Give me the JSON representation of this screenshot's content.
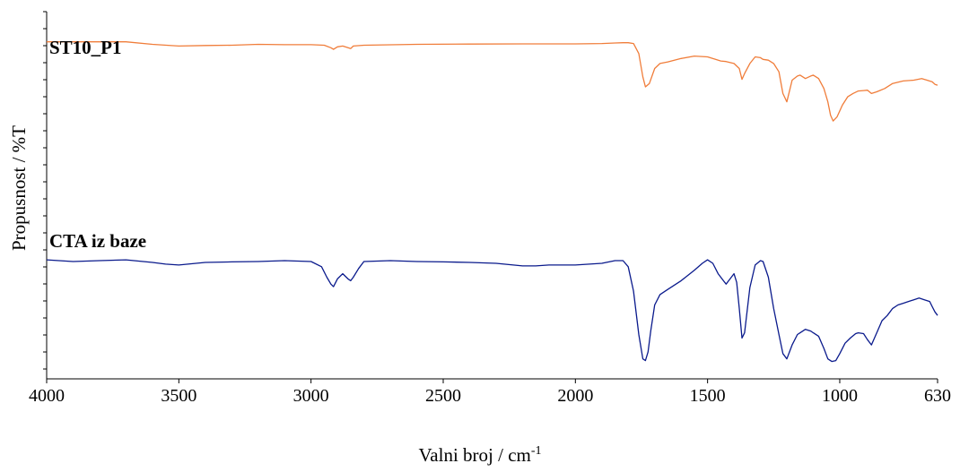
{
  "chart_data": {
    "type": "line",
    "xlabel": "Valni broj / cm",
    "xlabel_sup": "-1",
    "ylabel": "Propusnost / %T",
    "xlim": [
      4000,
      630
    ],
    "x_reversed": true,
    "ticks": [
      {
        "value": 4000,
        "label": "4000"
      },
      {
        "value": 3500,
        "label": "3500"
      },
      {
        "value": 3000,
        "label": "3000"
      },
      {
        "value": 2500,
        "label": "2500"
      },
      {
        "value": 2000,
        "label": "2000"
      },
      {
        "value": 1500,
        "label": "1500"
      },
      {
        "value": 1000,
        "label": "1000"
      },
      {
        "value": 630,
        "label": "630"
      }
    ],
    "ylim": [
      0,
      100
    ],
    "y_ticks_unlabeled": true,
    "series": [
      {
        "name": "ST10_P1",
        "color": "#f07d3a",
        "x": [
          4000,
          3700,
          3600,
          3500,
          3400,
          3300,
          3200,
          3100,
          3000,
          2950,
          2925,
          2915,
          2900,
          2880,
          2860,
          2850,
          2840,
          2800,
          2600,
          2400,
          2200,
          2000,
          1900,
          1850,
          1820,
          1800,
          1780,
          1760,
          1745,
          1735,
          1720,
          1700,
          1680,
          1650,
          1600,
          1550,
          1500,
          1470,
          1450,
          1430,
          1400,
          1380,
          1370,
          1360,
          1340,
          1320,
          1300,
          1290,
          1270,
          1250,
          1230,
          1215,
          1200,
          1180,
          1160,
          1150,
          1130,
          1110,
          1100,
          1080,
          1060,
          1045,
          1035,
          1025,
          1010,
          990,
          970,
          950,
          930,
          910,
          895,
          880,
          860,
          830,
          800,
          760,
          720,
          690,
          670,
          650,
          640,
          630
        ],
        "y": [
          91,
          91,
          89.5,
          88.5,
          88.8,
          89,
          89.5,
          89.3,
          89.3,
          89,
          87.5,
          86.5,
          88,
          88.5,
          87.5,
          87,
          88.5,
          89,
          89.5,
          89.7,
          89.8,
          89.8,
          90,
          90.3,
          90.5,
          90.5,
          90,
          84,
          70,
          64,
          66,
          75,
          78,
          79,
          81,
          82.5,
          82,
          80.5,
          79.5,
          79.2,
          78,
          75,
          68.5,
          72,
          78,
          82,
          81.5,
          80.5,
          80,
          78,
          73,
          60,
          55,
          68,
          70.5,
          71,
          69,
          70.5,
          71,
          69,
          63,
          55,
          47,
          43.5,
          46,
          53,
          58,
          60,
          61.5,
          61.8,
          62,
          60,
          61,
          63,
          66,
          67.5,
          68,
          69,
          68,
          67,
          65.5,
          65
        ]
      },
      {
        "name": "CTA iz baze",
        "color": "#0a1a8c",
        "x": [
          4000,
          3900,
          3800,
          3700,
          3600,
          3550,
          3500,
          3400,
          3300,
          3200,
          3100,
          3000,
          2960,
          2940,
          2925,
          2915,
          2900,
          2880,
          2860,
          2850,
          2840,
          2820,
          2800,
          2700,
          2600,
          2500,
          2400,
          2300,
          2200,
          2150,
          2100,
          2000,
          1900,
          1850,
          1820,
          1800,
          1780,
          1760,
          1745,
          1735,
          1725,
          1715,
          1700,
          1680,
          1650,
          1600,
          1550,
          1520,
          1500,
          1480,
          1460,
          1440,
          1430,
          1420,
          1400,
          1390,
          1380,
          1370,
          1360,
          1340,
          1320,
          1300,
          1290,
          1270,
          1250,
          1230,
          1215,
          1200,
          1180,
          1160,
          1150,
          1130,
          1110,
          1100,
          1080,
          1060,
          1045,
          1030,
          1015,
          1000,
          980,
          960,
          940,
          930,
          910,
          895,
          880,
          860,
          840,
          820,
          800,
          780,
          760,
          740,
          720,
          700,
          680,
          660,
          650,
          640,
          630
        ],
        "y": [
          68,
          67,
          67.5,
          68,
          66.5,
          65.5,
          65,
          66.5,
          66.8,
          67,
          67.5,
          67,
          64,
          58,
          54,
          52.5,
          57,
          60,
          57,
          56,
          58,
          63,
          67,
          67.5,
          67,
          66.8,
          66.5,
          66,
          64.5,
          64.5,
          65,
          65,
          66,
          67.5,
          67.5,
          64,
          50,
          25,
          11,
          10,
          15,
          27,
          42,
          48,
          51,
          56,
          62,
          66,
          68,
          66,
          60,
          56,
          54,
          56,
          60,
          55,
          40,
          23,
          26,
          52,
          65,
          67.5,
          67,
          58,
          40,
          25,
          14,
          11,
          19,
          25,
          26,
          28,
          27,
          26,
          24,
          17,
          11,
          9.5,
          10,
          14,
          20,
          23,
          25.5,
          26,
          25.5,
          22,
          19,
          26,
          33,
          36,
          40,
          42,
          43,
          44,
          45,
          46,
          45,
          44,
          41,
          38,
          36
        ]
      }
    ]
  }
}
